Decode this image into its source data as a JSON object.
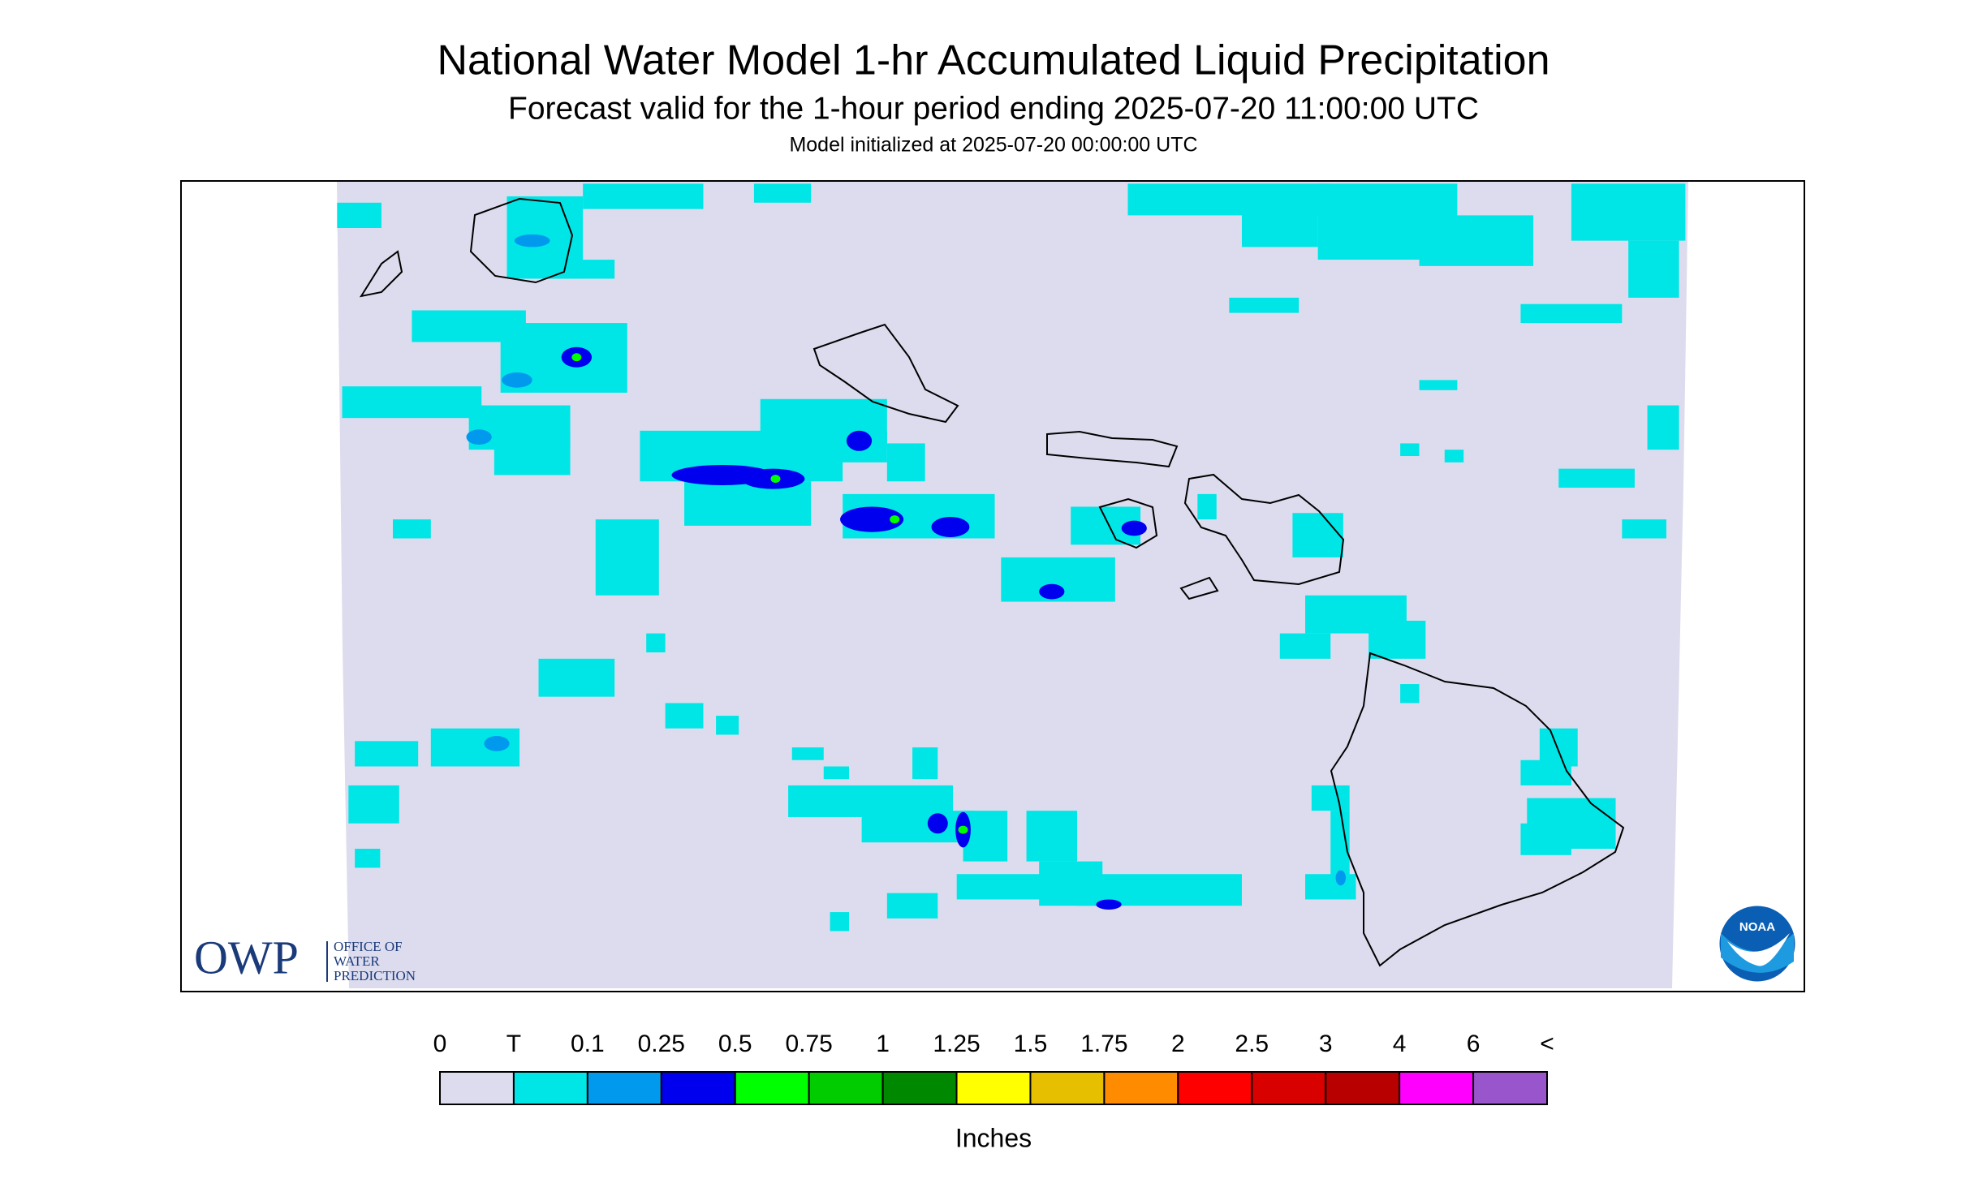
{
  "header": {
    "title": "National Water Model 1-hr Accumulated Liquid Precipitation",
    "subtitle": "Forecast valid for the 1-hour period ending 2025-07-20 11:00:00 UTC",
    "init": "Model initialized at 2025-07-20 00:00:00 UTC"
  },
  "colorbar": {
    "labels": [
      "0",
      "T",
      "0.1",
      "0.25",
      "0.5",
      "0.75",
      "1",
      "1.25",
      "1.5",
      "1.75",
      "2",
      "2.5",
      "3",
      "4",
      "6",
      "<"
    ],
    "colors": [
      "#dcdcee",
      "#00e6e6",
      "#0099ee",
      "#0000ee",
      "#00ff00",
      "#00cc00",
      "#008800",
      "#ffff00",
      "#e6bf00",
      "#ff8c00",
      "#ff0000",
      "#d90000",
      "#b80000",
      "#ff00ff",
      "#9955cc"
    ],
    "unit": "Inches"
  },
  "logos": {
    "owp": "OWP",
    "owp_lines": [
      "OFFICE OF",
      "WATER",
      "PREDICTION"
    ],
    "noaa": "NOAA"
  }
}
